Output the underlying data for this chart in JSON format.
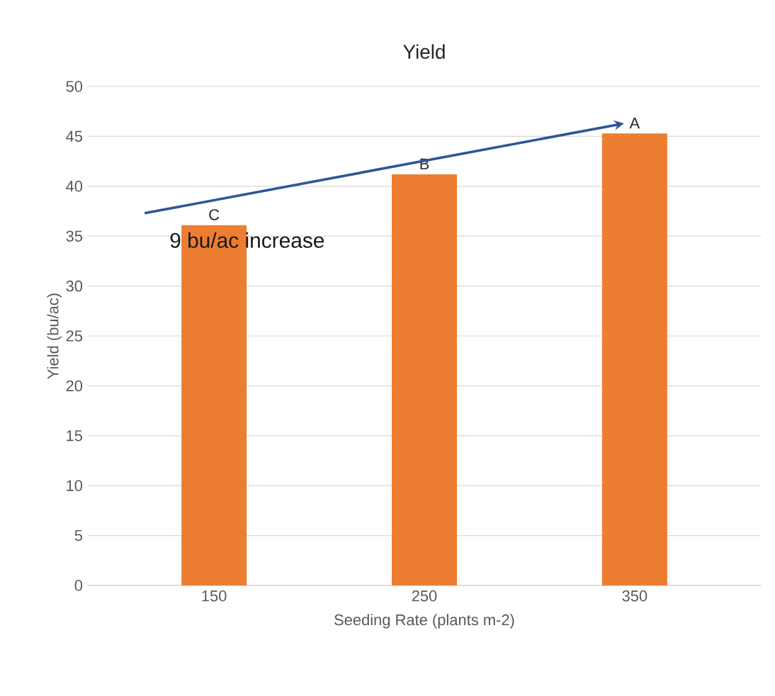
{
  "chart_data": {
    "type": "bar",
    "title": "Yield",
    "xlabel": "Seeding Rate (plants m-2)",
    "ylabel": "Yield (bu/ac)",
    "categories": [
      "150",
      "250",
      "350"
    ],
    "values": [
      36.1,
      41.2,
      45.3
    ],
    "color": "#ed7d31",
    "ylim": [
      0,
      50
    ],
    "yticks": [
      0,
      5,
      10,
      15,
      20,
      25,
      30,
      35,
      40,
      45,
      50
    ],
    "grid": "y",
    "annotations": [
      {
        "text": "C",
        "x": "150",
        "y": 36.1
      },
      {
        "text": "B",
        "x": "250",
        "y": 41.2
      },
      {
        "text": "A",
        "x": "350",
        "y": 45.3
      },
      "9 bu/ac increase"
    ]
  }
}
